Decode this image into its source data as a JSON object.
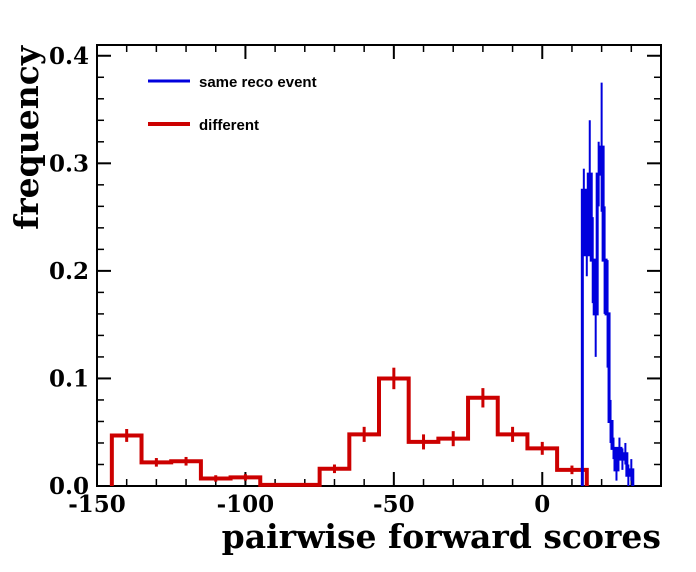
{
  "chart_data": {
    "type": "histogram",
    "xlabel": "pairwise forward scores",
    "ylabel": "frequency",
    "xlim": [
      -150,
      40
    ],
    "ylim": [
      0,
      0.41
    ],
    "x_ticks": [
      -150,
      -100,
      -50,
      0
    ],
    "x_tick_labels": [
      "-150",
      "-100",
      "-50",
      "0"
    ],
    "y_ticks": [
      0,
      0.1,
      0.2,
      0.3,
      0.4
    ],
    "y_tick_labels": [
      "0.0",
      "0.1",
      "0.2",
      "0.3",
      "0.4"
    ],
    "grid": false,
    "legend_position": "top-left",
    "series": [
      {
        "name": "same reco event",
        "color": "#0000dd",
        "line_width": 3,
        "bin_edges": [
          13.5,
          14.5,
          15.5,
          16.5,
          17.5,
          18.5,
          19.5,
          20.5,
          21.5,
          22.5,
          23.5,
          24.5,
          25.5,
          26.5,
          27.5,
          28.5,
          29.5,
          30.5
        ],
        "values": [
          0.275,
          0.215,
          0.29,
          0.21,
          0.16,
          0.29,
          0.315,
          0.21,
          0.16,
          0.06,
          0.035,
          0.015,
          0.035,
          0.025,
          0.03,
          0.01,
          0.015
        ],
        "errors": [
          0.02,
          0.02,
          0.05,
          0.04,
          0.04,
          0.03,
          0.06,
          0.05,
          0.05,
          0.02,
          0.01,
          0.01,
          0.01,
          0.01,
          0.01,
          0.01,
          0.01
        ]
      },
      {
        "name": "different",
        "color": "#cc0000",
        "line_width": 4,
        "bin_edges": [
          -145,
          -135,
          -125,
          -115,
          -105,
          -95,
          -85,
          -75,
          -65,
          -55,
          -45,
          -35,
          -25,
          -15,
          -5,
          5,
          15
        ],
        "values": [
          0.047,
          0.022,
          0.023,
          0.007,
          0.008,
          0.001,
          0.001,
          0.016,
          0.048,
          0.1,
          0.041,
          0.044,
          0.082,
          0.048,
          0.035,
          0.015
        ],
        "errors": [
          0.006,
          0.004,
          0.004,
          0.003,
          0.003,
          0.001,
          0.001,
          0.004,
          0.007,
          0.01,
          0.007,
          0.007,
          0.009,
          0.007,
          0.006,
          0.004
        ]
      }
    ]
  }
}
